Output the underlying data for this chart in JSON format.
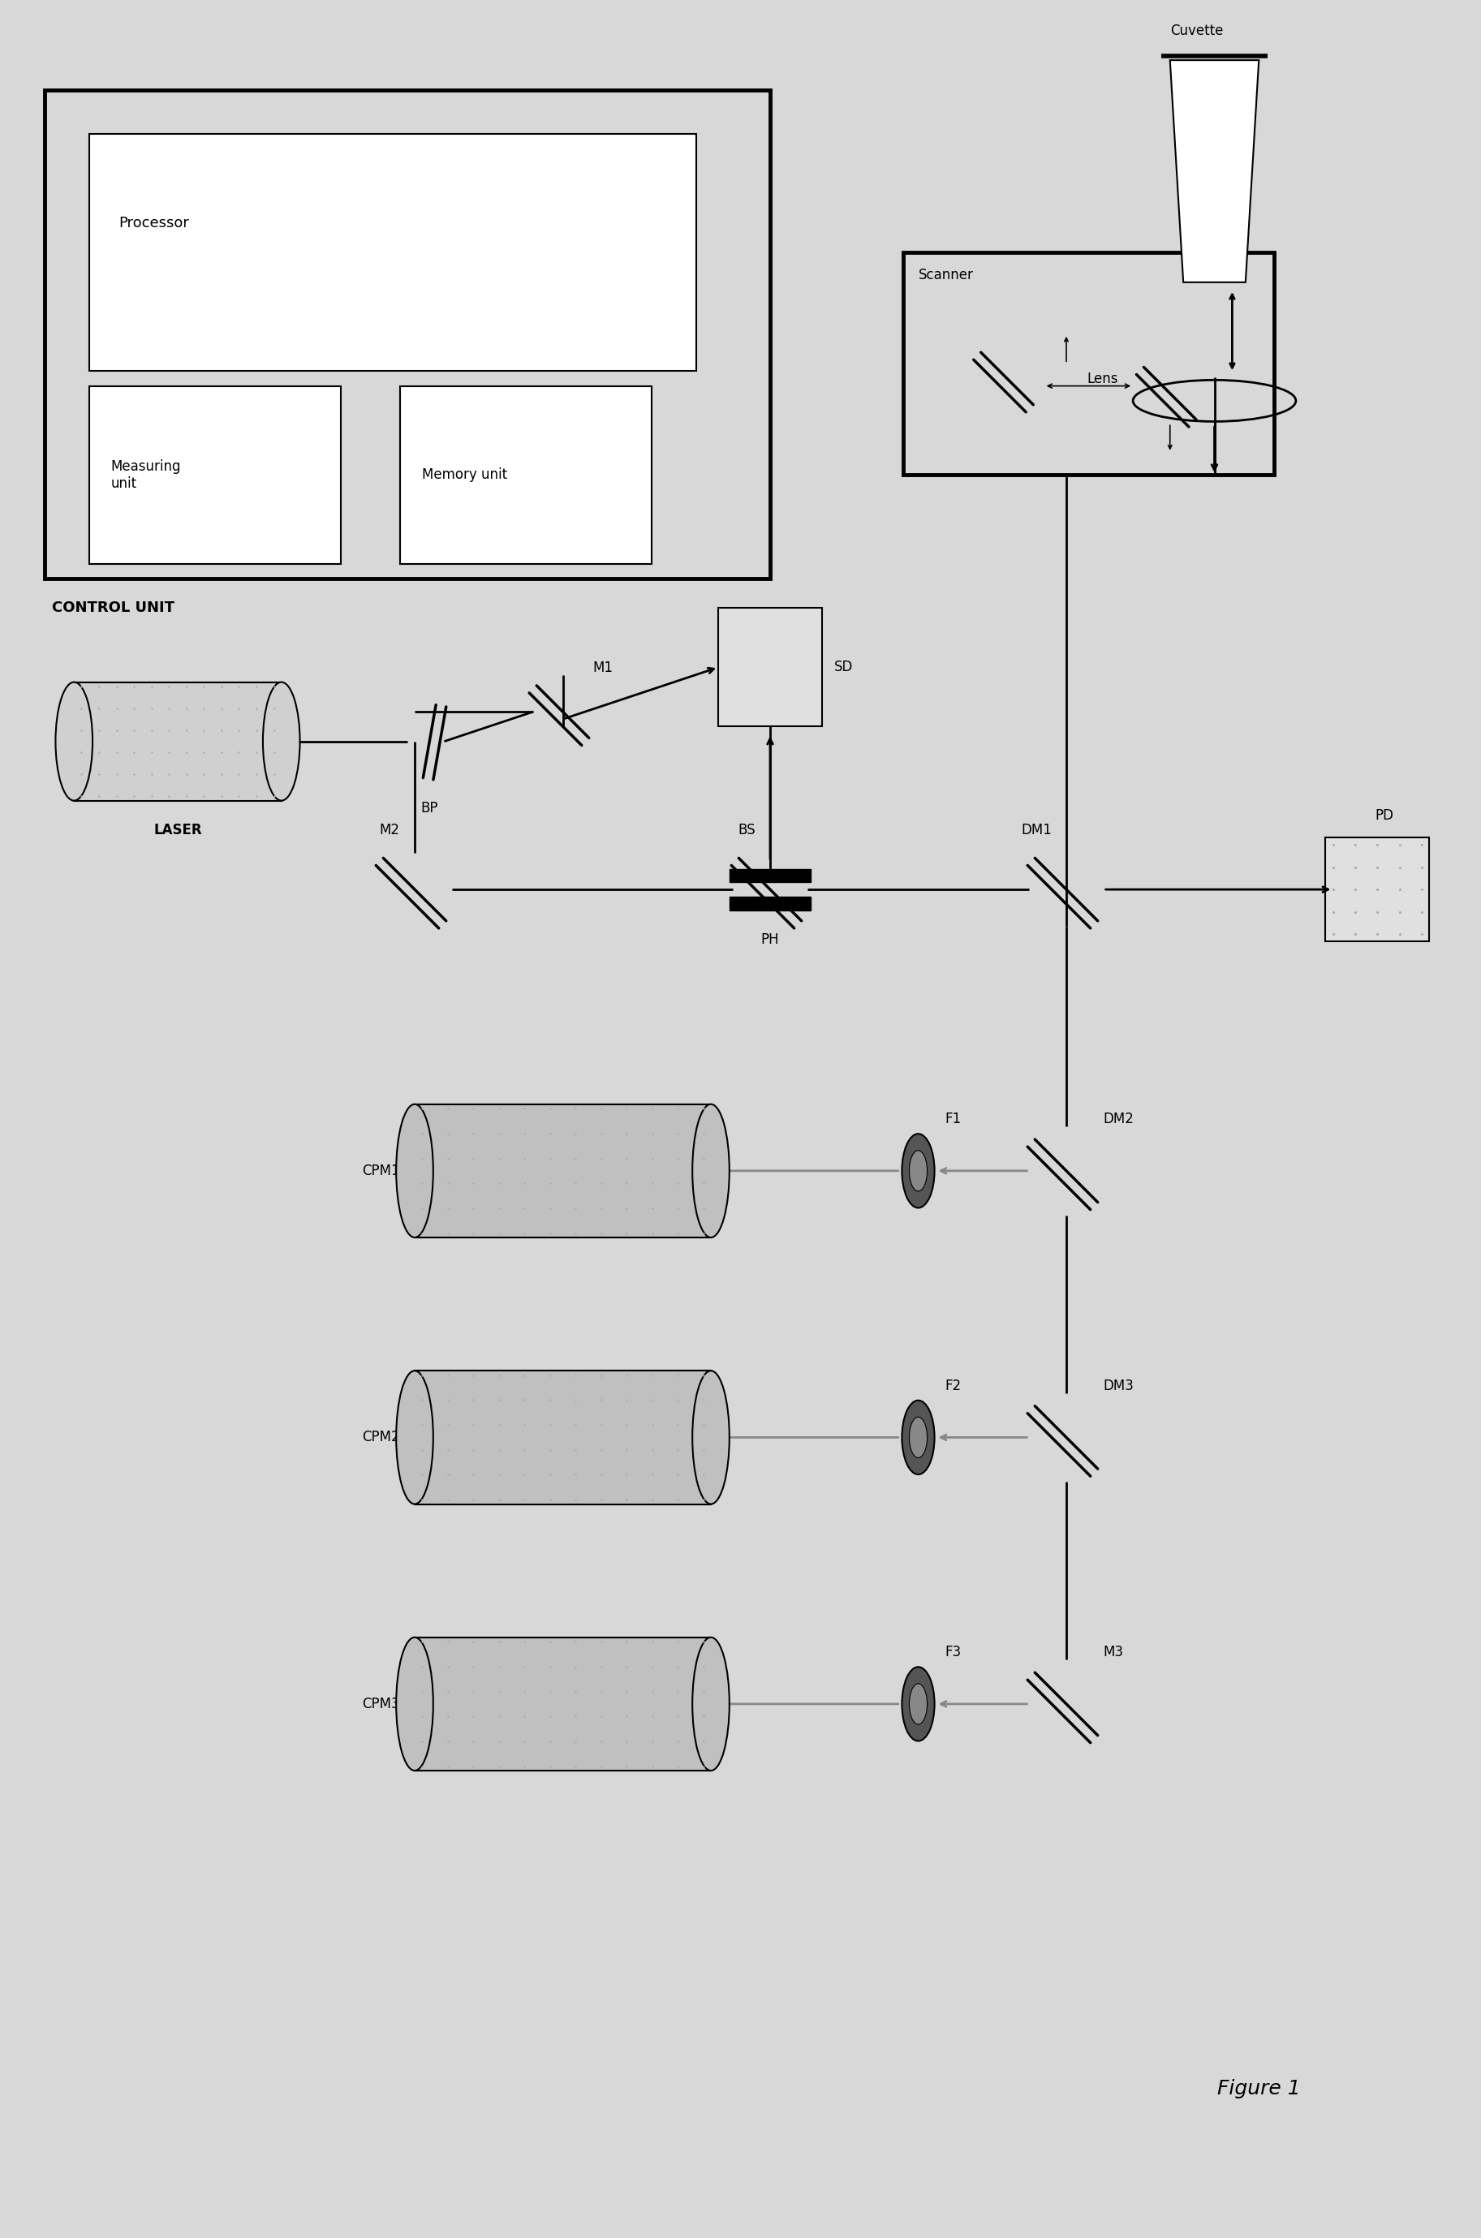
{
  "bg_color": "#d8d8d8",
  "fig_width": 18.25,
  "fig_height": 27.58,
  "labels": {
    "control_unit": "CONTROL UNIT",
    "processor": "Processor",
    "measuring_unit": "Measuring\nunit",
    "memory_unit": "Memory unit",
    "cuvette": "Cuvette",
    "lens": "Lens",
    "scanner": "Scanner",
    "laser": "LASER",
    "bp": "BP",
    "m1": "M1",
    "m2": "M2",
    "bs": "BS",
    "ph": "PH",
    "sd": "SD",
    "dm1": "DM1",
    "dm2": "DM2",
    "dm3": "DM3",
    "m3": "M3",
    "pd": "PD",
    "f1": "F1",
    "f2": "F2",
    "f3": "F3",
    "cpm1": "CPM1",
    "cpm2": "CPM2",
    "cpm3": "CPM3",
    "figure": "Figure 1"
  }
}
